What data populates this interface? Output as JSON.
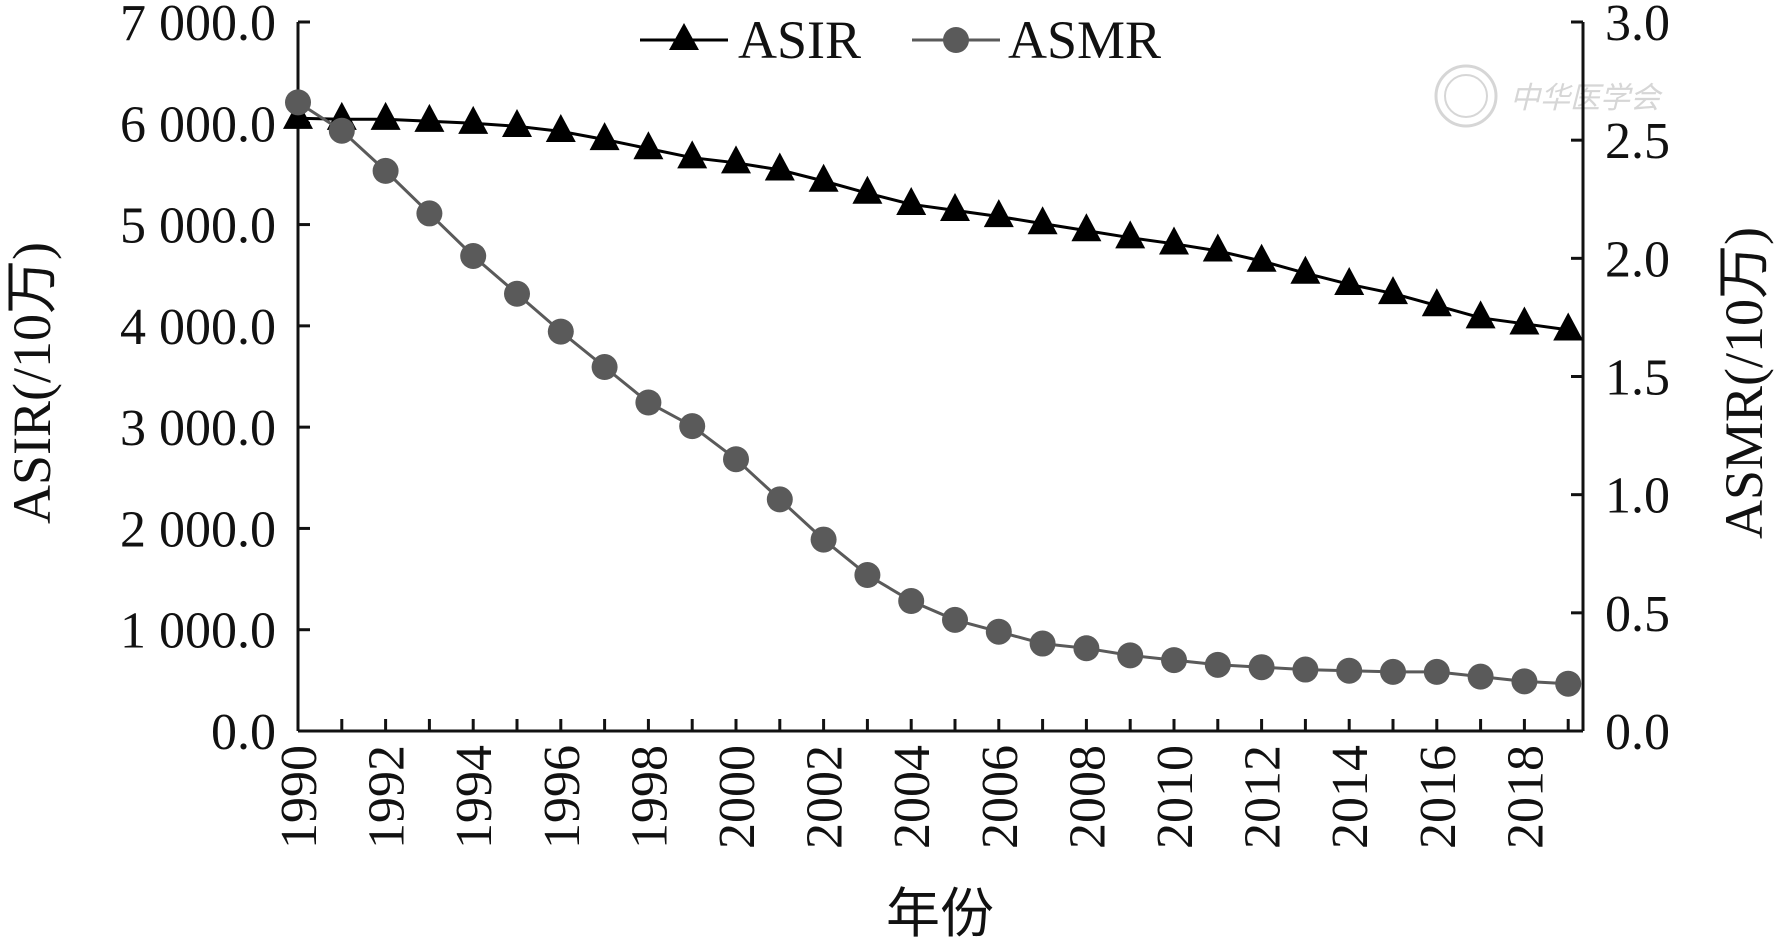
{
  "chart_data": {
    "type": "line",
    "title": "",
    "xlabel": "年份",
    "ylabel_left": "ASIR(/10万)",
    "ylabel_right": "ASMR(/10万)",
    "x": [
      1990,
      1991,
      1992,
      1993,
      1994,
      1995,
      1996,
      1997,
      1998,
      1999,
      2000,
      2001,
      2002,
      2003,
      2004,
      2005,
      2006,
      2007,
      2008,
      2009,
      2010,
      2011,
      2012,
      2013,
      2014,
      2015,
      2016,
      2017,
      2018,
      2019
    ],
    "x_tick_labels": [
      "1990",
      "1992",
      "1994",
      "1996",
      "1998",
      "2000",
      "2002",
      "2004",
      "2006",
      "2008",
      "2010",
      "2012",
      "2014",
      "2016",
      "2018"
    ],
    "xlim": [
      1990,
      2019.5
    ],
    "ylim_left": [
      0,
      7000
    ],
    "ylim_right": [
      0,
      3.0
    ],
    "y_left_tick_labels": [
      "0.0",
      "1 000.0",
      "2 000.0",
      "3 000.0",
      "4 000.0",
      "5 000.0",
      "6 000.0",
      "7 000.0"
    ],
    "y_right_tick_labels": [
      "0.0",
      "0.5",
      "1.0",
      "1.5",
      "2.0",
      "2.5",
      "3.0"
    ],
    "legend_position": "top",
    "series": [
      {
        "name": "ASIR",
        "axis": "left",
        "marker": "triangle",
        "color": "#000000",
        "values": [
          6050,
          6040,
          6040,
          6020,
          6000,
          5970,
          5920,
          5840,
          5750,
          5660,
          5610,
          5540,
          5430,
          5310,
          5200,
          5140,
          5080,
          5010,
          4940,
          4870,
          4810,
          4740,
          4640,
          4520,
          4410,
          4320,
          4200,
          4080,
          4020,
          3960
        ]
      },
      {
        "name": "ASMR",
        "axis": "right",
        "marker": "circle",
        "color": "#5a5a5a",
        "values": [
          2.66,
          2.54,
          2.37,
          2.19,
          2.01,
          1.85,
          1.69,
          1.54,
          1.39,
          1.29,
          1.15,
          0.98,
          0.81,
          0.66,
          0.55,
          0.47,
          0.42,
          0.37,
          0.35,
          0.32,
          0.3,
          0.28,
          0.27,
          0.26,
          0.255,
          0.25,
          0.25,
          0.23,
          0.21,
          0.2
        ]
      }
    ]
  },
  "watermark": {
    "text": "中华医学会",
    "color": "#d6d6d6"
  }
}
